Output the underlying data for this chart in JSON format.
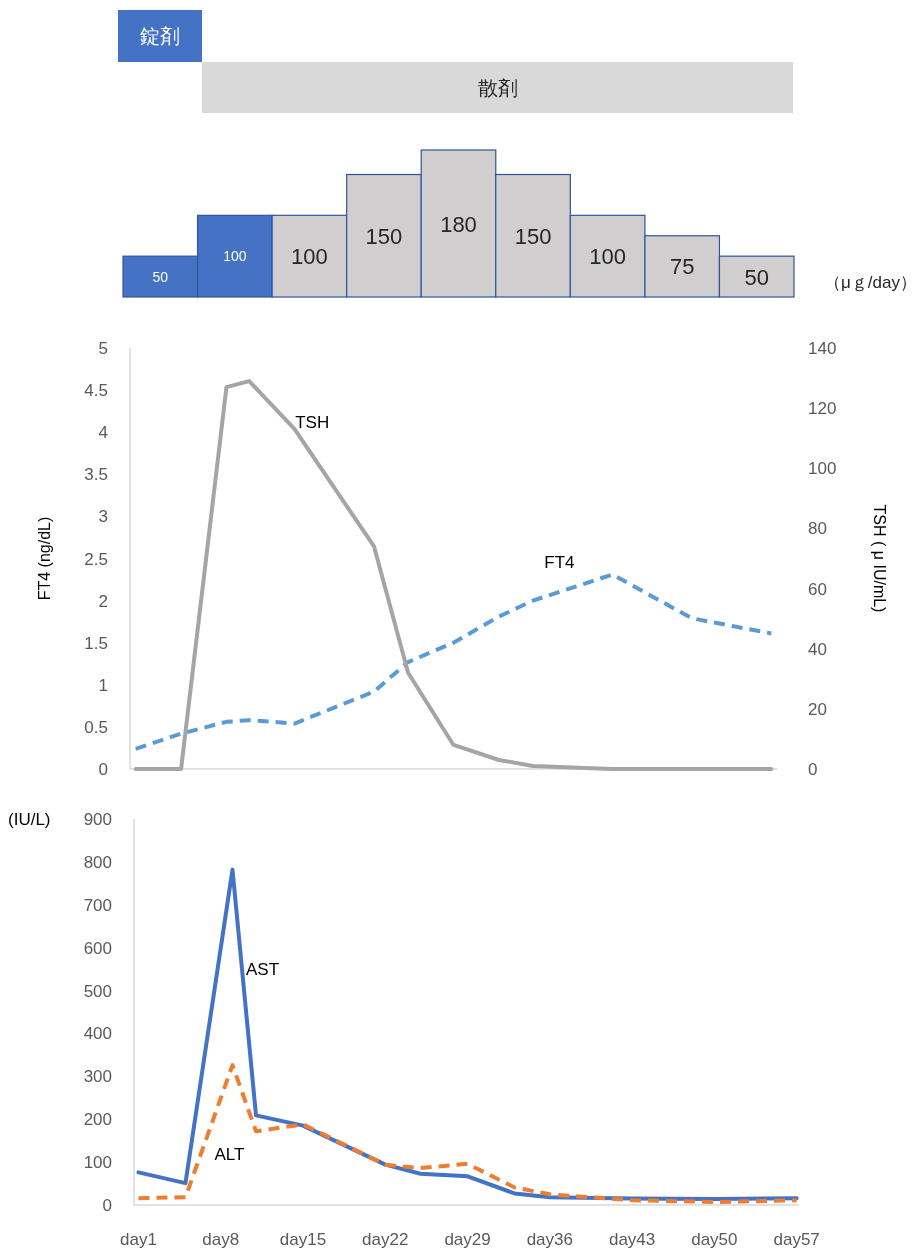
{
  "chart_data": [
    {
      "type": "bar",
      "categories": [
        null,
        null,
        null,
        null,
        null,
        null,
        null,
        null,
        null
      ],
      "values": [
        50,
        100,
        100,
        150,
        180,
        150,
        100,
        75,
        50
      ],
      "colors": [
        "#4472c4",
        "#4472c4",
        "#d0cece",
        "#d0cece",
        "#d0cece",
        "#d0cece",
        "#d0cece",
        "#d0cece",
        "#d0cece"
      ],
      "data_labels": true,
      "ylabel": "（μｇ/day）",
      "annotations": [
        "錠剤",
        "散剤"
      ]
    },
    {
      "type": "line",
      "categories": [
        null,
        null,
        null,
        null,
        null,
        null,
        null,
        null,
        null,
        null,
        null,
        null,
        null,
        null,
        null,
        null,
        null,
        null,
        null,
        null,
        null,
        null,
        null,
        null,
        null,
        null,
        null,
        null,
        null,
        null,
        null,
        null,
        null,
        null,
        null,
        null,
        null,
        null,
        null,
        null,
        null,
        null,
        null,
        null,
        null,
        null,
        null,
        null,
        null,
        null,
        null,
        null,
        null,
        null,
        null,
        null,
        null
      ],
      "ylabel": "FT4 (ng/dL)",
      "y2label": "TSH ( μ IU/mL)",
      "ylim": [
        0,
        5
      ],
      "yticks": [
        0,
        0.5,
        1,
        1.5,
        2,
        2.5,
        3,
        3.5,
        4,
        4.5,
        5
      ],
      "y2lim": [
        0,
        140
      ],
      "y2ticks": [
        0,
        20,
        40,
        60,
        80,
        100,
        120,
        140
      ],
      "series": [
        {
          "name": "FT4",
          "color": "#5b9bd5",
          "line_style": "dashed",
          "values": [
            0.24,
            null,
            null,
            null,
            0.42,
            null,
            null,
            null,
            0.56,
            null,
            0.58,
            null,
            null,
            null,
            0.54,
            null,
            null,
            null,
            null,
            null,
            null,
            0.92,
            null,
            null,
            1.27,
            null,
            null,
            null,
            1.5,
            null,
            null,
            null,
            1.81,
            null,
            null,
            2.0,
            null,
            null,
            null,
            null,
            null,
            null,
            2.31,
            null,
            null,
            null,
            null,
            null,
            null,
            1.79,
            null,
            null,
            null,
            null,
            null,
            null,
            1.61
          ]
        },
        {
          "name": "TSH",
          "color": "#a5a5a5",
          "line_style": "solid",
          "axis": "y2",
          "values": [
            0,
            null,
            null,
            null,
            0,
            null,
            null,
            null,
            127,
            null,
            129,
            null,
            null,
            null,
            113,
            null,
            null,
            null,
            null,
            null,
            null,
            74,
            null,
            null,
            32,
            null,
            null,
            null,
            8,
            null,
            null,
            null,
            3,
            null,
            null,
            1,
            null,
            null,
            null,
            null,
            null,
            null,
            0,
            null,
            null,
            null,
            null,
            null,
            null,
            0,
            null,
            null,
            null,
            null,
            null,
            null,
            0
          ]
        }
      ]
    },
    {
      "type": "line",
      "categories": [
        "day1",
        null,
        null,
        null,
        null,
        null,
        null,
        "day8",
        null,
        null,
        null,
        null,
        null,
        null,
        "day15",
        null,
        null,
        null,
        null,
        null,
        null,
        "day22",
        null,
        null,
        null,
        null,
        null,
        null,
        "day29",
        null,
        null,
        null,
        null,
        null,
        null,
        "day36",
        null,
        null,
        null,
        null,
        null,
        null,
        "day43",
        null,
        null,
        null,
        null,
        null,
        null,
        "day50",
        null,
        null,
        null,
        null,
        null,
        null,
        "day57"
      ],
      "ylim": [
        0,
        900
      ],
      "yticks": [
        0,
        100,
        200,
        300,
        400,
        500,
        600,
        700,
        800,
        900
      ],
      "ylabel": "(IU/L)",
      "series": [
        {
          "name": "AST",
          "color": "#4472c4",
          "line_style": "solid",
          "values": [
            76,
            null,
            null,
            null,
            51,
            null,
            null,
            null,
            782,
            null,
            209,
            null,
            null,
            null,
            185,
            null,
            null,
            null,
            null,
            null,
            null,
            94,
            null,
            null,
            73,
            null,
            null,
            null,
            67,
            null,
            null,
            null,
            27,
            null,
            null,
            18,
            null,
            null,
            null,
            null,
            null,
            null,
            15,
            null,
            null,
            null,
            null,
            null,
            null,
            14,
            null,
            null,
            null,
            null,
            null,
            null,
            16
          ]
        },
        {
          "name": "ALT",
          "color": "#ed7d31",
          "line_style": "dashed",
          "values": [
            16,
            null,
            null,
            null,
            18,
            null,
            null,
            null,
            326,
            null,
            172,
            null,
            null,
            null,
            188,
            null,
            null,
            null,
            null,
            null,
            null,
            94,
            null,
            null,
            86,
            null,
            null,
            null,
            96,
            null,
            null,
            null,
            41,
            null,
            null,
            25,
            null,
            null,
            null,
            null,
            null,
            null,
            11,
            null,
            null,
            null,
            null,
            null,
            null,
            7,
            null,
            null,
            null,
            null,
            null,
            null,
            11
          ]
        }
      ]
    }
  ]
}
